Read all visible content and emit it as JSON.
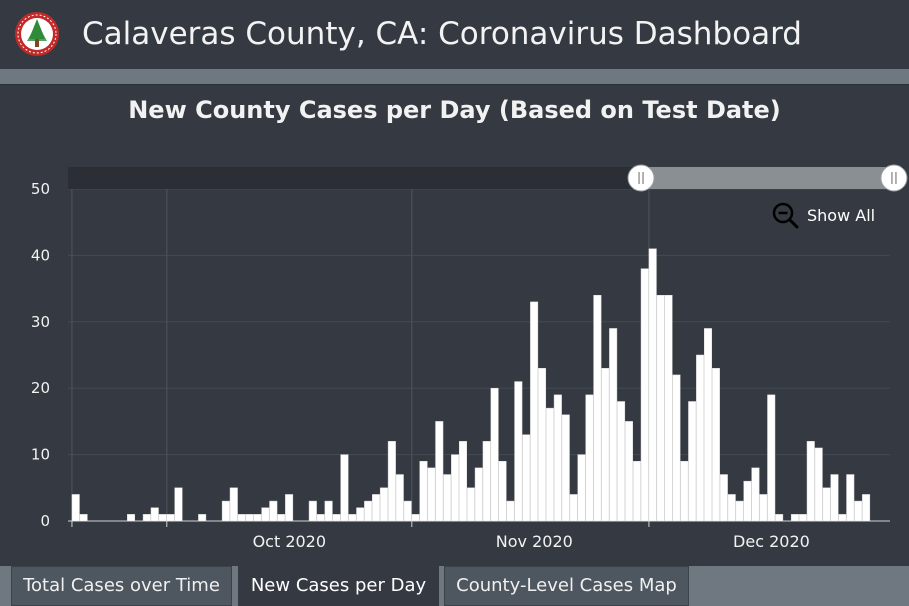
{
  "header": {
    "title": "Calaveras County, CA: Coronavirus Dashboard",
    "logo_icon": "county-seal-tree-icon"
  },
  "chart_title": "New County Cases per Day (Based on Test Date)",
  "show_all_label": "Show All",
  "tabs": [
    {
      "label": "Total Cases over Time",
      "active": false
    },
    {
      "label": "New Cases per Day",
      "active": true
    },
    {
      "label": "County-Level Cases Map",
      "active": false
    }
  ],
  "colors": {
    "background": "#353a42",
    "bar_fill": "#ffffff",
    "gridline": "#454a52",
    "tab_strip": "#6f7780"
  },
  "chart_data": {
    "type": "bar",
    "title": "New County Cases per Day (Based on Test Date)",
    "xlabel": "",
    "ylabel": "",
    "ylim": [
      0,
      50
    ],
    "y_ticks": [
      0,
      10,
      20,
      30,
      40,
      50
    ],
    "x_tick_labels": [
      "Oct 2020",
      "Nov 2020",
      "Dec 2020"
    ],
    "x_range": [
      "2020-09-18",
      "2020-12-31"
    ],
    "grid": true,
    "range_selector": {
      "start": "2020-11-30",
      "end": "2020-12-31"
    },
    "dates": [
      "2020-09-19",
      "2020-09-20",
      "2020-09-21",
      "2020-09-22",
      "2020-09-23",
      "2020-09-24",
      "2020-09-25",
      "2020-09-26",
      "2020-09-27",
      "2020-09-28",
      "2020-09-29",
      "2020-09-30",
      "2020-10-01",
      "2020-10-02",
      "2020-10-03",
      "2020-10-04",
      "2020-10-05",
      "2020-10-06",
      "2020-10-07",
      "2020-10-08",
      "2020-10-09",
      "2020-10-10",
      "2020-10-11",
      "2020-10-12",
      "2020-10-13",
      "2020-10-14",
      "2020-10-15",
      "2020-10-16",
      "2020-10-17",
      "2020-10-18",
      "2020-10-19",
      "2020-10-20",
      "2020-10-21",
      "2020-10-22",
      "2020-10-23",
      "2020-10-24",
      "2020-10-25",
      "2020-10-26",
      "2020-10-27",
      "2020-10-28",
      "2020-10-29",
      "2020-10-30",
      "2020-10-31",
      "2020-11-01",
      "2020-11-02",
      "2020-11-03",
      "2020-11-04",
      "2020-11-05",
      "2020-11-06",
      "2020-11-07",
      "2020-11-08",
      "2020-11-09",
      "2020-11-10",
      "2020-11-11",
      "2020-11-12",
      "2020-11-13",
      "2020-11-14",
      "2020-11-15",
      "2020-11-16",
      "2020-11-17",
      "2020-11-18",
      "2020-11-19",
      "2020-11-20",
      "2020-11-21",
      "2020-11-22",
      "2020-11-23",
      "2020-11-24",
      "2020-11-25",
      "2020-11-26",
      "2020-11-27",
      "2020-11-28",
      "2020-11-29",
      "2020-11-30",
      "2020-12-01",
      "2020-12-02",
      "2020-12-03",
      "2020-12-04",
      "2020-12-05",
      "2020-12-06",
      "2020-12-07",
      "2020-12-08",
      "2020-12-09",
      "2020-12-10",
      "2020-12-11",
      "2020-12-12",
      "2020-12-13",
      "2020-12-14",
      "2020-12-15",
      "2020-12-16",
      "2020-12-17",
      "2020-12-18",
      "2020-12-19",
      "2020-12-20",
      "2020-12-21",
      "2020-12-22",
      "2020-12-23",
      "2020-12-24",
      "2020-12-25",
      "2020-12-26",
      "2020-12-27",
      "2020-12-28",
      "2020-12-29",
      "2020-12-30"
    ],
    "values": [
      4,
      1,
      0,
      0,
      0,
      0,
      0,
      1,
      0,
      1,
      2,
      1,
      1,
      5,
      0,
      0,
      1,
      0,
      0,
      3,
      5,
      1,
      1,
      1,
      2,
      3,
      1,
      4,
      0,
      0,
      3,
      1,
      3,
      1,
      10,
      1,
      2,
      3,
      4,
      5,
      12,
      7,
      3,
      1,
      9,
      8,
      15,
      7,
      10,
      12,
      5,
      8,
      12,
      20,
      9,
      3,
      21,
      13,
      33,
      23,
      17,
      19,
      16,
      4,
      10,
      19,
      34,
      23,
      29,
      18,
      15,
      9,
      38,
      41,
      34,
      34,
      22,
      9,
      18,
      25,
      29,
      23,
      7,
      4,
      3,
      6,
      8,
      4,
      19,
      1,
      0,
      1,
      1,
      12,
      11,
      5,
      7,
      1,
      7,
      3,
      4,
      0,
      0
    ]
  }
}
